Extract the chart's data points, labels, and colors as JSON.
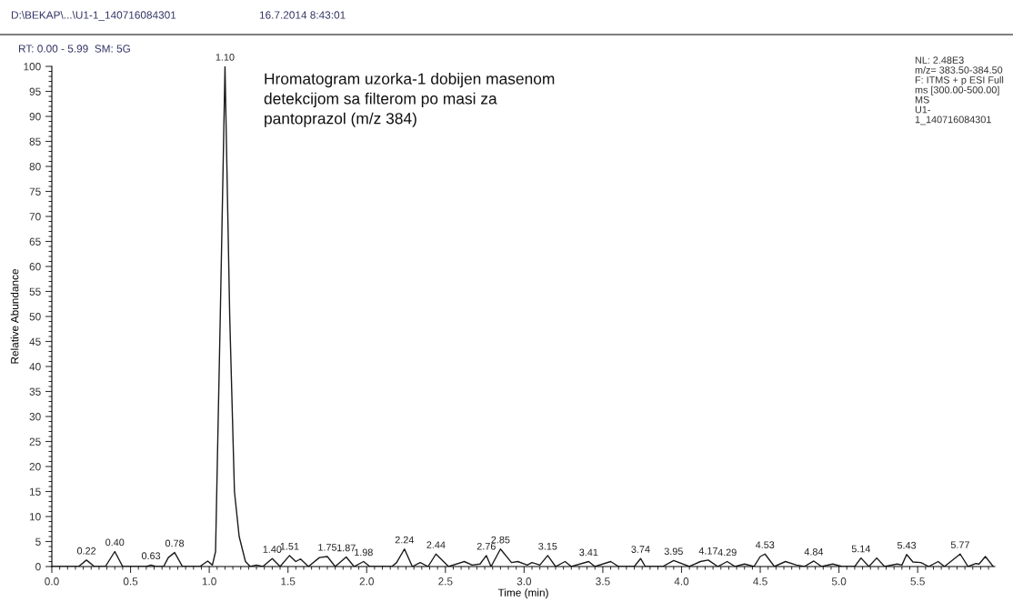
{
  "chart_data": {
    "type": "line",
    "xlabel": "Time (min)",
    "ylabel": "Relative Abundance",
    "x": [
      0,
      0.17,
      0.22,
      0.27,
      0.34,
      0.4,
      0.45,
      0.6,
      0.63,
      0.66,
      0.71,
      0.74,
      0.78,
      0.83,
      0.94,
      0.99,
      1.02,
      1.04,
      1.07,
      1.1,
      1.13,
      1.16,
      1.19,
      1.23,
      1.26,
      1.3,
      1.34,
      1.4,
      1.45,
      1.51,
      1.55,
      1.58,
      1.63,
      1.7,
      1.75,
      1.8,
      1.87,
      1.92,
      1.98,
      2.02,
      2.16,
      2.19,
      2.24,
      2.29,
      2.34,
      2.39,
      2.44,
      2.52,
      2.62,
      2.67,
      2.72,
      2.76,
      2.79,
      2.85,
      2.92,
      2.96,
      3.02,
      3.05,
      3.1,
      3.15,
      3.2,
      3.26,
      3.3,
      3.41,
      3.45,
      3.55,
      3.6,
      3.7,
      3.74,
      3.77,
      3.88,
      3.95,
      4.05,
      4.12,
      4.17,
      4.23,
      4.29,
      4.34,
      4.4,
      4.46,
      4.5,
      4.53,
      4.59,
      4.66,
      4.73,
      4.78,
      4.84,
      4.89,
      4.96,
      5.02,
      5.1,
      5.14,
      5.19,
      5.24,
      5.29,
      5.37,
      5.4,
      5.43,
      5.47,
      5.52,
      5.57,
      5.63,
      5.67,
      5.77,
      5.82,
      5.87,
      5.89,
      5.93,
      5.98
    ],
    "series": [
      {
        "color": "#1a1a1a",
        "values": [
          0,
          0,
          1.3,
          0,
          0,
          3.0,
          0,
          0,
          0.3,
          0,
          0,
          1.8,
          2.8,
          0,
          0,
          1.1,
          0.3,
          3,
          50,
          100,
          50,
          15,
          6,
          1,
          0,
          0.3,
          0,
          1.6,
          0,
          2.2,
          1.0,
          1.5,
          0,
          1.8,
          2.0,
          0,
          1.9,
          0,
          1.0,
          0,
          0,
          0.8,
          3.5,
          0,
          0.8,
          0,
          2.5,
          0,
          1.0,
          0.3,
          0.5,
          2.2,
          0,
          3.5,
          0.8,
          1.0,
          0.3,
          0.8,
          0.3,
          2.2,
          0,
          1.0,
          0,
          1.0,
          0,
          1.0,
          0,
          0,
          1.6,
          0,
          0,
          1.2,
          0,
          1.0,
          1.3,
          0,
          1.0,
          0,
          0.5,
          0,
          2.0,
          2.5,
          0,
          1.0,
          0.3,
          0,
          1.1,
          0,
          0.5,
          0,
          0,
          1.7,
          0,
          1.7,
          0,
          0.5,
          0.3,
          2.4,
          0.9,
          0.8,
          0,
          1.0,
          0,
          2.5,
          0,
          0.6,
          0.5,
          2.0,
          0
        ]
      }
    ],
    "xlim": [
      0,
      5.99
    ],
    "ylim": [
      0,
      100
    ],
    "xticks": [
      {
        "value": 0,
        "label": "0.0"
      },
      {
        "value": 0.5,
        "label": "0.5"
      },
      {
        "value": 1,
        "label": "1.0"
      },
      {
        "value": 1.5,
        "label": "1.5"
      },
      {
        "value": 2,
        "label": "2.0"
      },
      {
        "value": 2.5,
        "label": "2.5"
      },
      {
        "value": 3,
        "label": "3.0"
      },
      {
        "value": 3.5,
        "label": "3.5"
      },
      {
        "value": 4,
        "label": "4.0"
      },
      {
        "value": 4.5,
        "label": "4.5"
      },
      {
        "value": 5,
        "label": "5.0"
      },
      {
        "value": 5.5,
        "label": "5.5"
      }
    ],
    "yticks": [
      0,
      5,
      10,
      15,
      20,
      25,
      30,
      35,
      40,
      45,
      50,
      55,
      60,
      65,
      70,
      75,
      80,
      85,
      90,
      95,
      100
    ],
    "grid": false,
    "legend": false,
    "marker": "none",
    "line_style": "solid",
    "annotations": [
      "D:\\BEKAP\\...\\U1-1_140716084301",
      "16.7.2014 8:43:01",
      "RT: 0.00 - 5.99  SM: 5G",
      "NL: 2.48E3\nm/z= 383.50-384.50\nF: ITMS + p ESI Full\nms [300.00-500.00]\nMS\nU1-\n1_140716084301",
      "Hromatogram uzorka-1 dobijen masenom\ndetekcijom sa filterom po masi za\npantoprazol (m/z 384)",
      {
        "text": "0.22",
        "x": 0.22,
        "y": 1.3
      },
      {
        "text": "0.40",
        "x": 0.4,
        "y": 3.0
      },
      {
        "text": "0.63",
        "x": 0.63,
        "y": 0.3
      },
      {
        "text": "0.78",
        "x": 0.78,
        "y": 2.8
      },
      {
        "text": "1.10",
        "x": 1.1,
        "y": 100
      },
      {
        "text": "1.40",
        "x": 1.4,
        "y": 1.6
      },
      {
        "text": "1.51",
        "x": 1.51,
        "y": 2.2
      },
      {
        "text": "1.75",
        "x": 1.75,
        "y": 2.0
      },
      {
        "text": "1.87",
        "x": 1.87,
        "y": 1.9
      },
      {
        "text": "1.98",
        "x": 1.98,
        "y": 1.0
      },
      {
        "text": "2.24",
        "x": 2.24,
        "y": 3.5
      },
      {
        "text": "2.44",
        "x": 2.44,
        "y": 2.5
      },
      {
        "text": "2.76",
        "x": 2.76,
        "y": 2.2
      },
      {
        "text": "2.85",
        "x": 2.85,
        "y": 3.5
      },
      {
        "text": "3.15",
        "x": 3.15,
        "y": 2.2
      },
      {
        "text": "3.41",
        "x": 3.41,
        "y": 1.0
      },
      {
        "text": "3.74",
        "x": 3.74,
        "y": 1.6
      },
      {
        "text": "3.95",
        "x": 3.95,
        "y": 1.2
      },
      {
        "text": "4.17",
        "x": 4.17,
        "y": 1.3
      },
      {
        "text": "4.29",
        "x": 4.29,
        "y": 1.0
      },
      {
        "text": "4.53",
        "x": 4.53,
        "y": 2.5
      },
      {
        "text": "4.84",
        "x": 4.84,
        "y": 1.1
      },
      {
        "text": "5.14",
        "x": 5.14,
        "y": 1.7
      },
      {
        "text": "5.43",
        "x": 5.43,
        "y": 2.4
      },
      {
        "text": "5.77",
        "x": 5.77,
        "y": 2.5
      }
    ]
  }
}
